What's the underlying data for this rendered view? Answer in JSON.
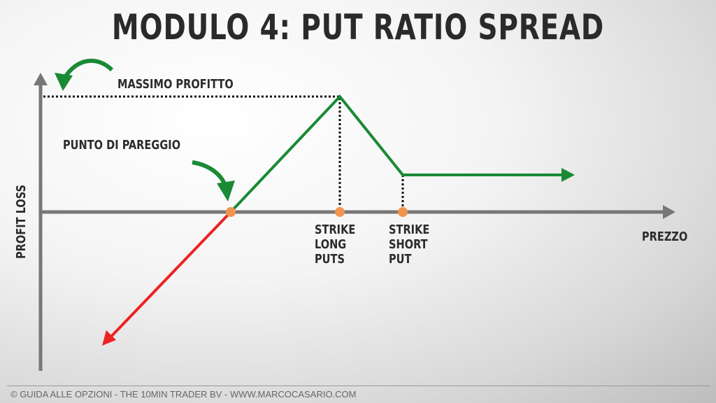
{
  "title": "MODULO 4: PUT RATIO SPREAD",
  "labels": {
    "max_profit": "MASSIMO PROFITTO",
    "breakeven": "PUNTO DI PAREGGIO",
    "y_axis": "PROFIT LOSS",
    "x_axis": "PREZZO",
    "strike_long": [
      "STRIKE",
      "LONG",
      "PUTS"
    ],
    "strike_short": [
      "STRIKE",
      "SHORT",
      "PUT"
    ]
  },
  "footer": "© GUIDA ALLE OPZIONI  - THE 10MIN TRADER BV - WWW.MARCOCASARIO.COM",
  "colors": {
    "profit": "#1a8a34",
    "loss": "#ee2222",
    "axis": "#777777",
    "marker": "#f29450",
    "arrow_callout": "#1a8a34"
  }
}
